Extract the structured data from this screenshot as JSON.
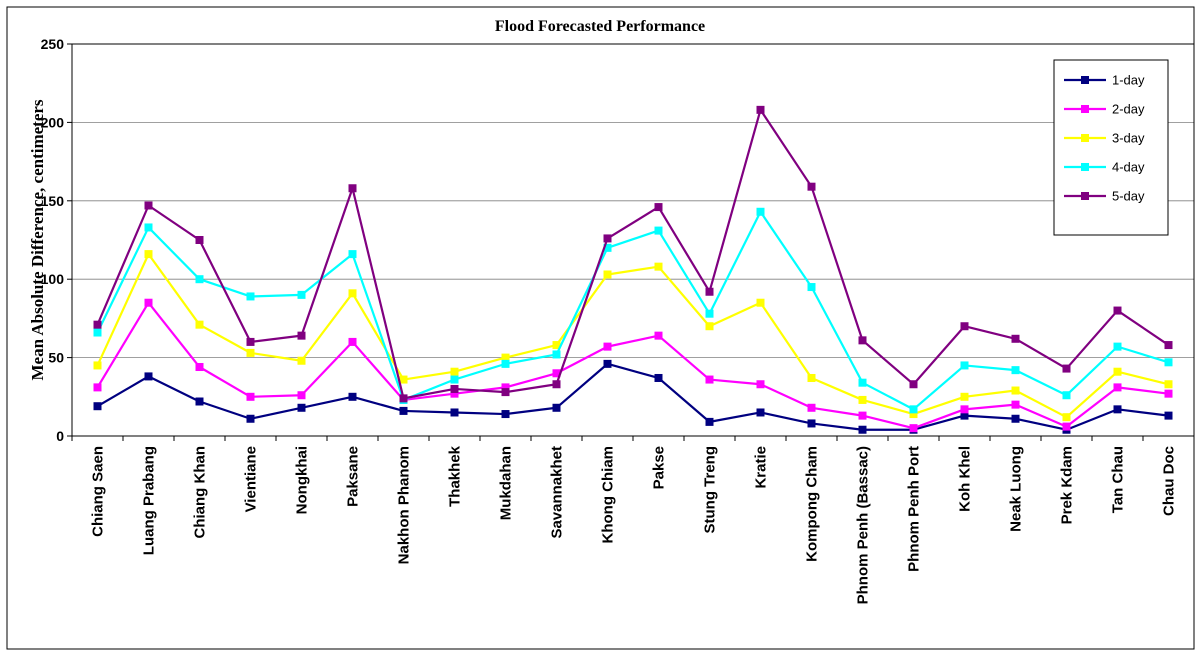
{
  "colors": {
    "background": "#ffffff",
    "frame": "#000000",
    "grid": "#808080"
  },
  "chart_data": {
    "type": "line",
    "title": "Flood Forecasted Performance",
    "xlabel": "",
    "ylabel": "Mean Absolute Difference, centimeters",
    "ylim": [
      0,
      250
    ],
    "yticks": [
      0,
      50,
      100,
      150,
      200,
      250
    ],
    "grid": true,
    "legend_position": "top-right",
    "categories": [
      "Chiang Saen",
      "Luang Prabang",
      "Chiang Khan",
      "Vientiane",
      "Nongkhai",
      "Paksane",
      "Nakhon Phanom",
      "Thakhek",
      "Mukdahan",
      "Savannakhet",
      "Khong Chiam",
      "Pakse",
      "Stung Treng",
      "Kratie",
      "Kompong Cham",
      "Phnom Penh (Bassac)",
      "Phnom Penh Port",
      "Koh Khel",
      "Neak Luong",
      "Prek Kdam",
      "Tan Chau",
      "Chau Doc"
    ],
    "series": [
      {
        "name": "1-day",
        "color": "#000080",
        "values": [
          19,
          38,
          22,
          11,
          18,
          25,
          16,
          15,
          14,
          18,
          46,
          37,
          9,
          15,
          8,
          4,
          4,
          13,
          11,
          4,
          17,
          13
        ]
      },
      {
        "name": "2-day",
        "color": "#ff00ff",
        "values": [
          31,
          85,
          44,
          25,
          26,
          60,
          23,
          27,
          31,
          40,
          57,
          64,
          36,
          33,
          18,
          13,
          5,
          17,
          20,
          6,
          31,
          27
        ]
      },
      {
        "name": "3-day",
        "color": "#ffff00",
        "values": [
          45,
          116,
          71,
          53,
          48,
          91,
          36,
          41,
          50,
          58,
          103,
          108,
          70,
          85,
          37,
          23,
          14,
          25,
          29,
          12,
          41,
          33
        ]
      },
      {
        "name": "4-day",
        "color": "#00ffff",
        "values": [
          66,
          133,
          100,
          89,
          90,
          116,
          23,
          36,
          46,
          52,
          120,
          131,
          78,
          143,
          95,
          34,
          17,
          45,
          42,
          26,
          57,
          47
        ]
      },
      {
        "name": "5-day",
        "color": "#800080",
        "values": [
          71,
          147,
          125,
          60,
          64,
          158,
          24,
          30,
          28,
          33,
          126,
          146,
          92,
          208,
          159,
          61,
          33,
          70,
          62,
          43,
          80,
          58
        ]
      }
    ]
  }
}
